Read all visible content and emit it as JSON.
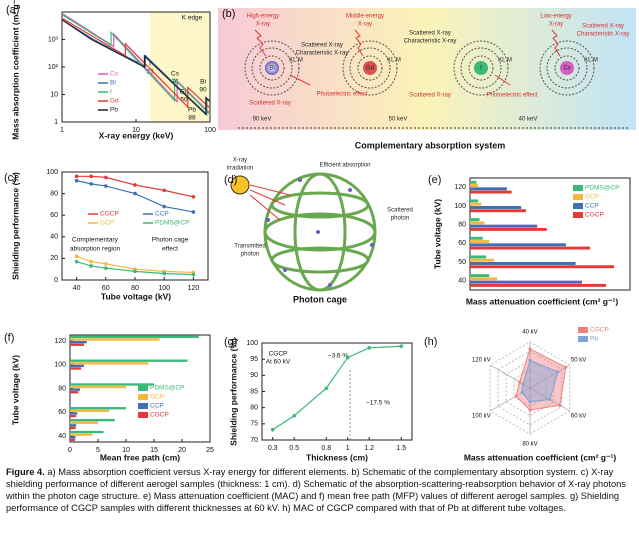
{
  "chart_data": [
    {
      "type": "line",
      "label": "(a)",
      "xlabel": "X-ray energy (keV)",
      "ylabel": "Mass absorption coefficient (m² g⁻¹)",
      "xlog": true,
      "ylog": true,
      "xlim": [
        1,
        100
      ],
      "ylim": [
        1,
        10000
      ],
      "xticks": [
        1,
        10,
        100
      ],
      "yticks": [
        1,
        10,
        {
          "value": 100,
          "label": "10²"
        },
        {
          "value": 1000,
          "label": "10³"
        }
      ],
      "annotations": [
        "K edge",
        "I",
        "33",
        "Cs",
        "36",
        "Gd",
        "50",
        "Pb",
        "88",
        "Bi",
        "90"
      ],
      "series": [
        {
          "name": "Cs",
          "color": "#d45fc2",
          "x": [
            1,
            5,
            5,
            36,
            36,
            100
          ],
          "values": [
            9000,
            560,
            1600,
            5.5,
            31,
            2.1
          ]
        },
        {
          "name": "Bi",
          "color": "#3f6fb5",
          "x": [
            1,
            2.6,
            13.4,
            13.4,
            40,
            90.5,
            90.5,
            100
          ],
          "values": [
            5300,
            1050,
            105,
            260,
            15,
            1.9,
            7.3,
            5.8
          ]
        },
        {
          "name": "I",
          "color": "#3cb878",
          "x": [
            1,
            4.6,
            4.6,
            33.2,
            33.2,
            100
          ],
          "values": [
            8000,
            620,
            1800,
            6,
            36,
            1.9
          ]
        },
        {
          "name": "Gd",
          "color": "#e53935",
          "x": [
            1,
            7.2,
            7.2,
            50.2,
            50.2,
            100
          ],
          "values": [
            6000,
            260,
            700,
            3.5,
            18,
            3.2
          ]
        },
        {
          "name": "Pb",
          "color": "#222222",
          "x": [
            1,
            2.5,
            13,
            13,
            40,
            88,
            88,
            100
          ],
          "values": [
            5200,
            1000,
            100,
            250,
            14,
            1.9,
            7.7,
            5.5
          ]
        }
      ]
    },
    {
      "type": "line",
      "label": "(c)",
      "xlabel": "Tube voltage (kV)",
      "ylabel": "Shielding performance (%)",
      "markers": true,
      "xlim": [
        30,
        130
      ],
      "ylim": [
        0,
        100
      ],
      "xticks": [
        40,
        60,
        80,
        100,
        120
      ],
      "yticks": [
        0,
        20,
        40,
        60,
        80,
        100
      ],
      "x": [
        40,
        50,
        60,
        80,
        100,
        120
      ],
      "annotations": [
        "Complementary",
        "absorption region",
        "Photon cage",
        "effect"
      ],
      "series": [
        {
          "name": "CGCP",
          "color": "#e53935",
          "values": [
            96,
            96,
            95,
            88,
            83,
            77
          ]
        },
        {
          "name": "CCP",
          "color": "#3f6fb5",
          "values": [
            92,
            89,
            87,
            80,
            68,
            63
          ]
        },
        {
          "name": "GCP",
          "color": "#f5b83d",
          "values": [
            22,
            17,
            15,
            10,
            8,
            7
          ]
        },
        {
          "name": "PDMS@CP",
          "color": "#3cb878",
          "values": [
            17,
            13,
            11,
            8,
            6,
            5
          ]
        }
      ]
    },
    {
      "type": "hbar",
      "label": "(e)",
      "xlabel": "Mass attenuation coefficient (cm² g⁻¹)",
      "ylabel": "Tube voltage (kV)",
      "xlim": [
        0,
        10
      ],
      "categories": [
        40,
        50,
        60,
        80,
        100,
        120
      ],
      "series": [
        {
          "name": "PDMS@CP",
          "color": "#3cb878",
          "values": [
            1.2,
            1.0,
            0.8,
            0.6,
            0.5,
            0.4
          ]
        },
        {
          "name": "GCP",
          "color": "#f5b83d",
          "values": [
            1.7,
            1.5,
            1.2,
            0.9,
            0.7,
            0.5
          ]
        },
        {
          "name": "CCP",
          "color": "#3f6fb5",
          "values": [
            7.0,
            6.6,
            6.0,
            4.2,
            3.2,
            2.3
          ]
        },
        {
          "name": "CGCP",
          "color": "#e53935",
          "values": [
            8.5,
            9.0,
            7.5,
            4.8,
            3.5,
            2.6
          ]
        }
      ]
    },
    {
      "type": "hbar",
      "label": "(f)",
      "xlabel": "Mean free path (cm)",
      "ylabel": "Tube voltage (kV)",
      "xlim": [
        0,
        25
      ],
      "xticks": [
        0,
        5,
        10,
        15,
        20,
        25
      ],
      "y": [
        40,
        50,
        60,
        80,
        100,
        120
      ],
      "ylim": [
        35,
        125
      ],
      "yticks": [
        40,
        60,
        80,
        100,
        120
      ],
      "series": [
        {
          "name": "PDMS@CP",
          "color": "#3cb878",
          "values": [
            6,
            8,
            10,
            15,
            21,
            23
          ]
        },
        {
          "name": "GCP",
          "color": "#f5b83d",
          "values": [
            4,
            5,
            7,
            10,
            14,
            16
          ]
        },
        {
          "name": "CCP",
          "color": "#3f6fb5",
          "values": [
            1.0,
            1.1,
            1.3,
            1.8,
            2.5,
            3
          ]
        },
        {
          "name": "CGCP",
          "color": "#e53935",
          "values": [
            0.9,
            1.0,
            1.1,
            1.5,
            2,
            2.5
          ]
        }
      ]
    },
    {
      "type": "line",
      "label": "(g)",
      "xlabel": "Thickness (cm)",
      "ylabel": "Shielding performance (%)",
      "markers": true,
      "xlim": [
        0.2,
        1.6
      ],
      "ylim": [
        70,
        100
      ],
      "xticks": [
        0.3,
        0.5,
        0.8,
        1.0,
        1.2,
        1.5
      ],
      "yticks": [
        70,
        75,
        80,
        85,
        90,
        95,
        100
      ],
      "x": [
        0.3,
        0.5,
        0.8,
        1.0,
        1.2,
        1.5
      ],
      "annotations": [
        "CGCP",
        "At 60 kV",
        "~3.6 %",
        "~17.5 %"
      ],
      "series": [
        {
          "name": "CGCP",
          "color": "#3cb878",
          "values": [
            73.2,
            77.5,
            86,
            95.5,
            98.5,
            99
          ]
        }
      ]
    },
    {
      "type": "radar",
      "label": "(h)",
      "xlabel": "Mass attenuation coefficient (cm² g⁻¹)",
      "categories": [
        "40 kV",
        "50 kV",
        "60 kV",
        "80 kV",
        "100 kV",
        "120 kV"
      ],
      "rlim": [
        0,
        10
      ],
      "rticks": [
        2,
        4,
        6,
        8,
        10
      ],
      "series": [
        {
          "name": "CGCP",
          "color": "#f08080",
          "values": [
            8.5,
            9.0,
            7.5,
            4.8,
            3.5,
            2.6
          ]
        },
        {
          "name": "Pb",
          "color": "#7fa3d6",
          "values": [
            6,
            7,
            5,
            3,
            2,
            1.7
          ]
        }
      ]
    }
  ],
  "diagrams": {
    "b": {
      "label": "(b)",
      "caption": "Complementary absorption system",
      "texts": [
        "High-energy",
        "X-ray",
        "Middle-energy",
        "X-ray",
        "Low-energy",
        "X-ray",
        "Scattered X-ray",
        "Characteristic X-ray",
        "Scattered X-ray",
        "Characteristic X-ray",
        "Scattered X-ray",
        "Characteristic X-ray",
        "Bi",
        "Gd",
        "I",
        "Cs",
        "KL M",
        "KL M",
        "KL M",
        "KL M",
        "Scattered X-ray",
        "Photoelectric effect",
        "Scattered X-ray",
        "Photoelectric effect",
        "90 keV",
        "50 keV",
        "40 keV"
      ]
    },
    "d": {
      "label": "(d)",
      "caption": "Photon cage",
      "texts": [
        "X-ray",
        "irradiation",
        "Efficient absorption",
        "Scattered",
        "photon",
        "Transmitted",
        "photon"
      ]
    }
  },
  "caption": {
    "label": "Figure 4.",
    "text": "a) Mass absorption coefficient versus X-ray energy for different elements. b) Schematic of the complementary absorption system. c) X-ray shielding performance of different aerogel samples (thickness: 1 cm). d) Schematic of the absorption-scattering-reabsorption behavior of X-ray photons within the photon cage structure. e) Mass attenuation coefficient (MAC) and f) mean free path (MFP) values of different aerogel samples. g) Shielding performance of CGCP samples with different thicknesses at 60 kV. h) MAC of CGCP compared with that of Pb at different tube voltages."
  }
}
